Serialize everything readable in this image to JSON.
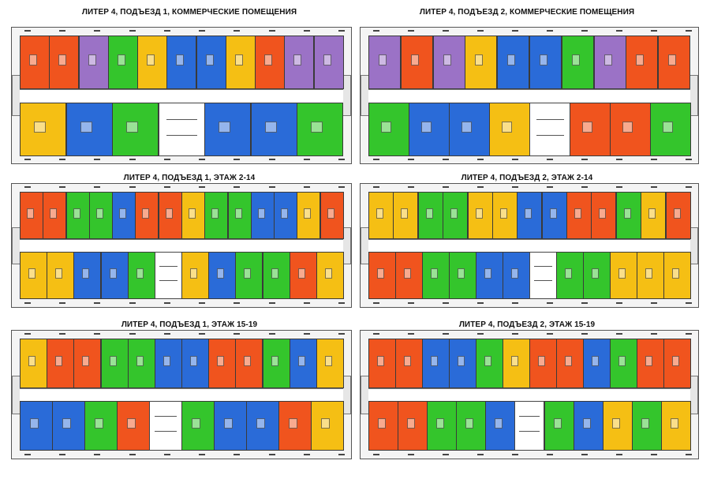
{
  "titles": {
    "commercial_1": "ЛИТЕР 4, ПОДЪЕЗД 1, КОММЕРЧЕСКИЕ ПОМЕЩЕНИЯ",
    "commercial_2": "ЛИТЕР 4, ПОДЪЕЗД 2, КОММЕРЧЕСКИЕ ПОМЕЩЕНИЯ",
    "floors_2_14_1": "ЛИТЕР 4, ПОДЪЕЗД 1, ЭТАЖ 2-14",
    "floors_2_14_2": "ЛИТЕР 4, ПОДЪЕЗД 2, ЭТАЖ 2-14",
    "floors_15_19_1": "ЛИТЕР 4, ПОДЪЕЗД 1, ЭТАЖ 15-19",
    "floors_15_19_2": "ЛИТЕР 4, ПОДЪЕЗД 2, ЭТАЖ 15-19"
  },
  "colors": {
    "orange": "#f0541e",
    "purple": "#9b72c6",
    "green": "#34c52c",
    "blue": "#2a6bd8",
    "yellow": "#f5bf14",
    "wall": "#555555",
    "background": "#f4f4f4"
  },
  "plans": {
    "commercial_1": {
      "top": [
        "orange",
        "orange",
        "purple",
        "green",
        "yellow",
        "blue",
        "blue",
        "yellow",
        "orange",
        "purple",
        "purple"
      ],
      "bottom": [
        "yellow",
        "blue",
        "green",
        "core",
        "blue",
        "blue",
        "green"
      ]
    },
    "commercial_2": {
      "top": [
        "purple",
        "orange",
        "purple",
        "yellow",
        "blue",
        "blue",
        "green",
        "purple",
        "orange",
        "orange"
      ],
      "bottom": [
        "green",
        "blue",
        "blue",
        "yellow",
        "core",
        "orange",
        "orange",
        "green"
      ]
    },
    "floors_2_14_1": {
      "top": [
        "orange",
        "orange",
        "green",
        "green",
        "blue",
        "orange",
        "orange",
        "yellow",
        "green",
        "green",
        "blue",
        "blue",
        "yellow",
        "orange"
      ],
      "bottom": [
        "yellow",
        "yellow",
        "blue",
        "blue",
        "green",
        "core",
        "yellow",
        "blue",
        "green",
        "green",
        "orange",
        "yellow"
      ]
    },
    "floors_2_14_2": {
      "top": [
        "yellow",
        "yellow",
        "green",
        "green",
        "yellow",
        "yellow",
        "blue",
        "blue",
        "orange",
        "orange",
        "green",
        "yellow",
        "orange"
      ],
      "bottom": [
        "orange",
        "orange",
        "green",
        "green",
        "blue",
        "blue",
        "core",
        "green",
        "green",
        "yellow",
        "yellow",
        "yellow"
      ]
    },
    "floors_15_19_1": {
      "top": [
        "yellow",
        "orange",
        "orange",
        "green",
        "green",
        "blue",
        "blue",
        "orange",
        "orange",
        "green",
        "blue",
        "yellow"
      ],
      "bottom": [
        "blue",
        "blue",
        "green",
        "orange",
        "core",
        "green",
        "blue",
        "blue",
        "orange",
        "yellow"
      ]
    },
    "floors_15_19_2": {
      "top": [
        "orange",
        "orange",
        "blue",
        "blue",
        "green",
        "yellow",
        "orange",
        "orange",
        "blue",
        "green",
        "orange",
        "orange"
      ],
      "bottom": [
        "orange",
        "orange",
        "green",
        "green",
        "blue",
        "core",
        "green",
        "blue",
        "yellow",
        "green",
        "yellow"
      ]
    }
  }
}
